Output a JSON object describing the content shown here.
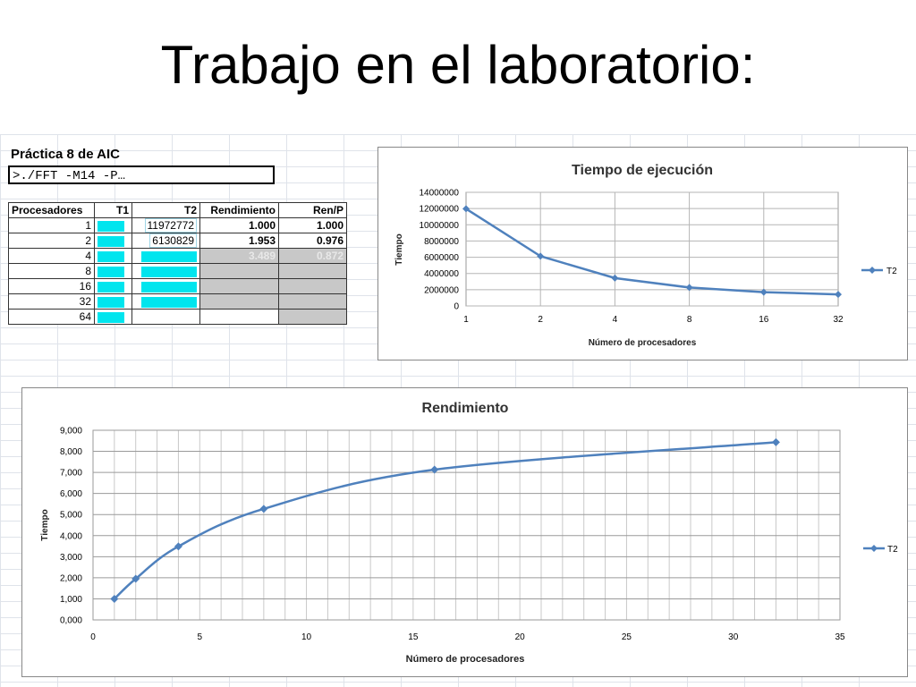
{
  "slide": {
    "title": "Trabajo en el laboratorio:"
  },
  "sheet": {
    "title": "Práctica 8 de AIC",
    "command": ">./FFT -M14 -P…",
    "headers": [
      "Procesadores",
      "T1",
      "T2",
      "Rendimiento",
      "Ren/P"
    ],
    "rows": [
      {
        "procesadores": "1",
        "t2": "11972772",
        "rendimiento": "1.000",
        "ren_p": "1.000"
      },
      {
        "procesadores": "2",
        "t2": "6130829",
        "rendimiento": "1.953",
        "ren_p": "0.976"
      },
      {
        "procesadores": "4",
        "t2": "",
        "rendimiento": "3.489",
        "ren_p": "0.872"
      },
      {
        "procesadores": "8",
        "t2": "",
        "rendimiento": "",
        "ren_p": ""
      },
      {
        "procesadores": "16",
        "t2": "",
        "rendimiento": "",
        "ren_p": ""
      },
      {
        "procesadores": "32",
        "t2": "",
        "rendimiento": "",
        "ren_p": ""
      },
      {
        "procesadores": "64",
        "t2": "",
        "rendimiento": "",
        "ren_p": ""
      }
    ],
    "colors": {
      "cyan": "#00e5ee",
      "gray_cell": "#c8c8c8"
    }
  },
  "chart_data": [
    {
      "type": "line",
      "title": "Tiempo de ejecución",
      "xlabel": "Número de procesadores",
      "ylabel": "Tiempo",
      "categories": [
        "1",
        "2",
        "4",
        "8",
        "16",
        "32"
      ],
      "series": [
        {
          "name": "T2",
          "values": [
            11972772,
            6130829,
            3430000,
            2270000,
            1700000,
            1420000
          ]
        }
      ],
      "ylim": [
        0,
        14000000
      ],
      "yticks": [
        "0",
        "2000000",
        "4000000",
        "6000000",
        "8000000",
        "10000000",
        "12000000",
        "14000000"
      ],
      "grid": true,
      "legend": "right",
      "color": "#4f81bd"
    },
    {
      "type": "scatter",
      "title": "Rendimiento",
      "xlabel": "Número de procesadores",
      "ylabel": "Tiempo",
      "x": [
        1,
        2,
        4,
        8,
        16,
        32
      ],
      "series": [
        {
          "name": "T2",
          "values": [
            1.0,
            1.953,
            3.489,
            5.27,
            7.13,
            8.43
          ]
        }
      ],
      "xlim": [
        0,
        35
      ],
      "ylim": [
        0,
        9
      ],
      "xticks": [
        "0",
        "5",
        "10",
        "15",
        "20",
        "25",
        "30",
        "35"
      ],
      "yticks": [
        "0,000",
        "1,000",
        "2,000",
        "3,000",
        "4,000",
        "5,000",
        "6,000",
        "7,000",
        "8,000",
        "9,000"
      ],
      "grid": true,
      "legend": "right",
      "color": "#4f81bd"
    }
  ]
}
